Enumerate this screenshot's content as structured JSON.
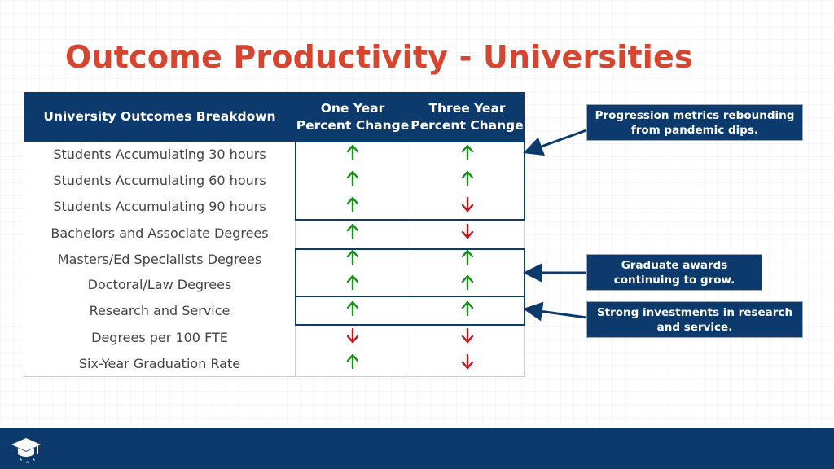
{
  "title": "Outcome Productivity - Universities",
  "table": {
    "headers": {
      "breakdown": "University Outcomes Breakdown",
      "one_year_line1": "One Year",
      "one_year_line2": "Percent Change",
      "three_year_line1": "Three Year",
      "three_year_line2": "Percent Change"
    },
    "rows": [
      {
        "label": "Students Accumulating 30 hours",
        "one_year": "up",
        "three_year": "up"
      },
      {
        "label": "Students Accumulating 60 hours",
        "one_year": "up",
        "three_year": "up"
      },
      {
        "label": "Students Accumulating 90 hours",
        "one_year": "up",
        "three_year": "down"
      },
      {
        "label": "Bachelors and Associate Degrees",
        "one_year": "up",
        "three_year": "down"
      },
      {
        "label": "Masters/Ed Specialists Degrees",
        "one_year": "up",
        "three_year": "up"
      },
      {
        "label": "Doctoral/Law Degrees",
        "one_year": "up",
        "three_year": "up"
      },
      {
        "label": "Research and Service",
        "one_year": "up",
        "three_year": "up"
      },
      {
        "label": "Degrees per 100 FTE",
        "one_year": "down",
        "three_year": "down"
      },
      {
        "label": "Six-Year Graduation Rate",
        "one_year": "up",
        "three_year": "down"
      }
    ]
  },
  "callouts": {
    "progression": "Progression metrics rebounding from pandemic dips.",
    "graduate": "Graduate awards continuing to grow.",
    "research": "Strong investments in research and service."
  },
  "colors": {
    "accent_title": "#d6452f",
    "navy": "#0c3a6c",
    "up_arrow": "#1e8c1e",
    "down_arrow": "#c0161c"
  },
  "icons": {
    "up": "arrow-up-icon",
    "down": "arrow-down-icon",
    "logo": "graduation-cap-logo-icon"
  }
}
